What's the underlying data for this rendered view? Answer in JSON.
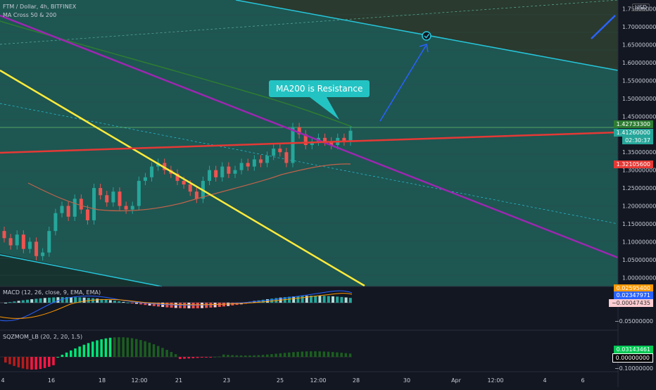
{
  "header": {
    "symbol_line": "FTM / Dollar, 4h, BITFINEX",
    "indicator_line": "MA Cross 50 & 200",
    "currency": "USD"
  },
  "annotation": {
    "text": "MA200 is Resistance"
  },
  "price_axis": {
    "ticks": [
      "1.75000000",
      "1.70000000",
      "1.65000000",
      "1.60000000",
      "1.55000000",
      "1.50000000",
      "1.45000000",
      "1.35000000",
      "1.30000000",
      "1.25000000",
      "1.20000000",
      "1.15000000",
      "1.10000000",
      "1.05000000",
      "1.00000000"
    ],
    "tag_resistance": "1.42733300",
    "tag_last": "1.41260000",
    "tag_countdown": "02:30:37",
    "tag_support": "1.32105600"
  },
  "macd": {
    "legend": "MACD (12, 26, close, 9, EMA, EMA)",
    "tag_a": "0.02595400",
    "tag_b": "0.02347971",
    "tag_c": "−0.00047435",
    "tick": "−0.05000000"
  },
  "sqz": {
    "legend": "SQZMOM_LB (20, 2, 20, 1.5)",
    "tag_a": "0.03143461",
    "tag_b": "0.00000000",
    "tick": "−0.10000000"
  },
  "time_axis": {
    "labels": [
      "4",
      "16",
      "18",
      "12:00",
      "21",
      "23",
      "25",
      "12:00",
      "28",
      "30",
      "Apr",
      "12:00",
      "4",
      "6"
    ]
  },
  "colors": {
    "background": "#131722",
    "channel_fill": "#1f5a58",
    "up": "#26a69a",
    "down": "#ef5350",
    "purple": "#9c27b0",
    "yellow": "#ffeb3b",
    "red_line": "#e53935",
    "cyan": "#26c6da",
    "arrow": "#2962ff"
  },
  "chart_data": [
    {
      "type": "candlestick",
      "title": "FTM / Dollar, 4h, BITFINEX",
      "ylabel": "USD",
      "ylim": [
        0.975,
        1.775
      ],
      "annotations": [
        "MA200 is Resistance"
      ],
      "ohlc_approx_close": [
        1.11,
        1.09,
        1.12,
        1.08,
        1.1,
        1.06,
        1.07,
        1.13,
        1.18,
        1.2,
        1.17,
        1.22,
        1.19,
        1.16,
        1.25,
        1.23,
        1.21,
        1.24,
        1.2,
        1.19,
        1.2,
        1.27,
        1.28,
        1.31,
        1.32,
        1.3,
        1.29,
        1.27,
        1.26,
        1.24,
        1.22,
        1.27,
        1.3,
        1.28,
        1.31,
        1.29,
        1.3,
        1.32,
        1.31,
        1.33,
        1.32,
        1.34,
        1.36,
        1.35,
        1.32,
        1.42,
        1.4,
        1.37,
        1.38,
        1.39,
        1.38,
        1.37,
        1.39,
        1.38,
        1.41
      ]
    },
    {
      "type": "bar",
      "title": "MACD (12, 26, close, 9, EMA, EMA)",
      "values_last": [
        0.025954,
        0.02347971,
        -0.00047435
      ]
    },
    {
      "type": "bar",
      "title": "SQZMOM_LB (20, 2, 20, 1.5)",
      "values_last": [
        0.03143461,
        0.0
      ]
    }
  ]
}
